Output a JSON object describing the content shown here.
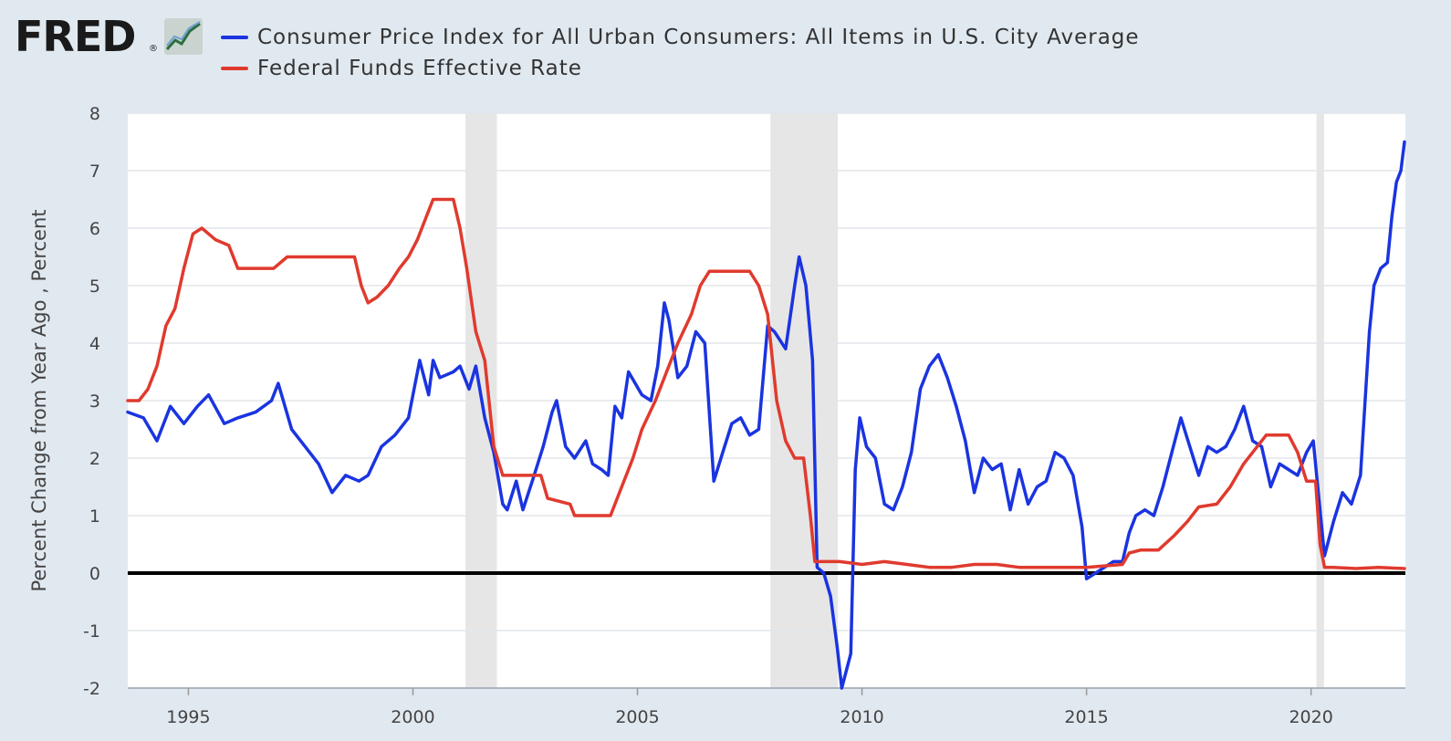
{
  "header": {
    "logo_text": "FRED",
    "logo_reg": "®",
    "logo_icon": "fred-chart-icon"
  },
  "colors": {
    "cpi": "#1a34e0",
    "fedfunds": "#e03a2e",
    "background": "#e1e9f0",
    "plot_bg": "#ffffff",
    "recession": "#e6e6e6",
    "grid": "#e2e6ea",
    "zero_line": "#000000"
  },
  "chart_data": {
    "type": "line",
    "title": "",
    "xlabel": "",
    "ylabel": "Percent Change from Year Ago , Percent",
    "xlim": [
      1993.65,
      2022.1
    ],
    "ylim": [
      -2,
      8
    ],
    "yticks": [
      "8",
      "7",
      "6",
      "5",
      "4",
      "3",
      "2",
      "1",
      "0",
      "-1",
      "-2"
    ],
    "ytick_values": [
      8,
      7,
      6,
      5,
      4,
      3,
      2,
      1,
      0,
      -1,
      -2
    ],
    "xticks": [
      "1995",
      "2000",
      "2005",
      "2010",
      "2015",
      "2020"
    ],
    "xtick_values": [
      1995,
      2000,
      2005,
      2010,
      2015,
      2020
    ],
    "grid": true,
    "legend_position": "top",
    "recessions": [
      [
        2001.17,
        2001.87
      ],
      [
        2007.96,
        2009.46
      ],
      [
        2020.12,
        2020.29
      ]
    ],
    "series": [
      {
        "name": "Consumer Price Index for All Urban Consumers: All Items in U.S. City Average",
        "color": "#1a34e0",
        "points": [
          [
            1993.65,
            2.8
          ],
          [
            1994.0,
            2.7
          ],
          [
            1994.3,
            2.3
          ],
          [
            1994.6,
            2.9
          ],
          [
            1994.9,
            2.6
          ],
          [
            1995.2,
            2.9
          ],
          [
            1995.45,
            3.1
          ],
          [
            1995.8,
            2.6
          ],
          [
            1996.1,
            2.7
          ],
          [
            1996.5,
            2.8
          ],
          [
            1996.85,
            3.0
          ],
          [
            1997.0,
            3.3
          ],
          [
            1997.3,
            2.5
          ],
          [
            1997.6,
            2.2
          ],
          [
            1997.9,
            1.9
          ],
          [
            1998.2,
            1.4
          ],
          [
            1998.5,
            1.7
          ],
          [
            1998.8,
            1.6
          ],
          [
            1999.0,
            1.7
          ],
          [
            1999.3,
            2.2
          ],
          [
            1999.6,
            2.4
          ],
          [
            1999.9,
            2.7
          ],
          [
            2000.15,
            3.7
          ],
          [
            2000.35,
            3.1
          ],
          [
            2000.45,
            3.7
          ],
          [
            2000.6,
            3.4
          ],
          [
            2000.9,
            3.5
          ],
          [
            2001.05,
            3.6
          ],
          [
            2001.25,
            3.2
          ],
          [
            2001.4,
            3.6
          ],
          [
            2001.6,
            2.7
          ],
          [
            2001.8,
            2.1
          ],
          [
            2002.0,
            1.2
          ],
          [
            2002.1,
            1.1
          ],
          [
            2002.3,
            1.6
          ],
          [
            2002.45,
            1.1
          ],
          [
            2002.7,
            1.7
          ],
          [
            2002.9,
            2.2
          ],
          [
            2003.1,
            2.8
          ],
          [
            2003.2,
            3.0
          ],
          [
            2003.4,
            2.2
          ],
          [
            2003.6,
            2.0
          ],
          [
            2003.85,
            2.3
          ],
          [
            2004.0,
            1.9
          ],
          [
            2004.2,
            1.8
          ],
          [
            2004.35,
            1.7
          ],
          [
            2004.5,
            2.9
          ],
          [
            2004.65,
            2.7
          ],
          [
            2004.8,
            3.5
          ],
          [
            2004.95,
            3.3
          ],
          [
            2005.1,
            3.1
          ],
          [
            2005.3,
            3.0
          ],
          [
            2005.45,
            3.6
          ],
          [
            2005.6,
            4.7
          ],
          [
            2005.7,
            4.4
          ],
          [
            2005.9,
            3.4
          ],
          [
            2006.1,
            3.6
          ],
          [
            2006.3,
            4.2
          ],
          [
            2006.5,
            4.0
          ],
          [
            2006.7,
            1.6
          ],
          [
            2006.9,
            2.1
          ],
          [
            2007.1,
            2.6
          ],
          [
            2007.3,
            2.7
          ],
          [
            2007.5,
            2.4
          ],
          [
            2007.7,
            2.5
          ],
          [
            2007.9,
            4.3
          ],
          [
            2008.05,
            4.2
          ],
          [
            2008.3,
            3.9
          ],
          [
            2008.5,
            5.0
          ],
          [
            2008.6,
            5.5
          ],
          [
            2008.75,
            5.0
          ],
          [
            2008.9,
            3.7
          ],
          [
            2009.0,
            0.1
          ],
          [
            2009.15,
            0.0
          ],
          [
            2009.3,
            -0.4
          ],
          [
            2009.45,
            -1.3
          ],
          [
            2009.55,
            -2.0
          ],
          [
            2009.75,
            -1.4
          ],
          [
            2009.85,
            1.8
          ],
          [
            2009.95,
            2.7
          ],
          [
            2010.1,
            2.2
          ],
          [
            2010.3,
            2.0
          ],
          [
            2010.5,
            1.2
          ],
          [
            2010.7,
            1.1
          ],
          [
            2010.9,
            1.5
          ],
          [
            2011.1,
            2.1
          ],
          [
            2011.3,
            3.2
          ],
          [
            2011.5,
            3.6
          ],
          [
            2011.7,
            3.8
          ],
          [
            2011.9,
            3.4
          ],
          [
            2012.1,
            2.9
          ],
          [
            2012.3,
            2.3
          ],
          [
            2012.5,
            1.4
          ],
          [
            2012.7,
            2.0
          ],
          [
            2012.9,
            1.8
          ],
          [
            2013.1,
            1.9
          ],
          [
            2013.3,
            1.1
          ],
          [
            2013.5,
            1.8
          ],
          [
            2013.7,
            1.2
          ],
          [
            2013.9,
            1.5
          ],
          [
            2014.1,
            1.6
          ],
          [
            2014.3,
            2.1
          ],
          [
            2014.5,
            2.0
          ],
          [
            2014.7,
            1.7
          ],
          [
            2014.9,
            0.8
          ],
          [
            2015.0,
            -0.1
          ],
          [
            2015.2,
            0.0
          ],
          [
            2015.4,
            0.1
          ],
          [
            2015.6,
            0.2
          ],
          [
            2015.8,
            0.2
          ],
          [
            2015.95,
            0.7
          ],
          [
            2016.1,
            1.0
          ],
          [
            2016.3,
            1.1
          ],
          [
            2016.5,
            1.0
          ],
          [
            2016.7,
            1.5
          ],
          [
            2016.9,
            2.1
          ],
          [
            2017.1,
            2.7
          ],
          [
            2017.3,
            2.2
          ],
          [
            2017.5,
            1.7
          ],
          [
            2017.7,
            2.2
          ],
          [
            2017.9,
            2.1
          ],
          [
            2018.1,
            2.2
          ],
          [
            2018.3,
            2.5
          ],
          [
            2018.5,
            2.9
          ],
          [
            2018.7,
            2.3
          ],
          [
            2018.9,
            2.2
          ],
          [
            2019.1,
            1.5
          ],
          [
            2019.3,
            1.9
          ],
          [
            2019.5,
            1.8
          ],
          [
            2019.7,
            1.7
          ],
          [
            2019.9,
            2.1
          ],
          [
            2020.05,
            2.3
          ],
          [
            2020.15,
            1.5
          ],
          [
            2020.3,
            0.3
          ],
          [
            2020.5,
            0.9
          ],
          [
            2020.7,
            1.4
          ],
          [
            2020.9,
            1.2
          ],
          [
            2021.1,
            1.7
          ],
          [
            2021.3,
            4.2
          ],
          [
            2021.4,
            5.0
          ],
          [
            2021.55,
            5.3
          ],
          [
            2021.7,
            5.4
          ],
          [
            2021.8,
            6.2
          ],
          [
            2021.9,
            6.8
          ],
          [
            2022.0,
            7.0
          ],
          [
            2022.08,
            7.5
          ]
        ]
      },
      {
        "name": "Federal Funds Effective Rate",
        "color": "#e03a2e",
        "points": [
          [
            1993.65,
            3.0
          ],
          [
            1993.9,
            3.0
          ],
          [
            1994.1,
            3.2
          ],
          [
            1994.3,
            3.6
          ],
          [
            1994.5,
            4.3
          ],
          [
            1994.7,
            4.6
          ],
          [
            1994.9,
            5.3
          ],
          [
            1995.1,
            5.9
          ],
          [
            1995.3,
            6.0
          ],
          [
            1995.6,
            5.8
          ],
          [
            1995.9,
            5.7
          ],
          [
            1996.1,
            5.3
          ],
          [
            1996.3,
            5.3
          ],
          [
            1996.6,
            5.3
          ],
          [
            1996.9,
            5.3
          ],
          [
            1997.2,
            5.5
          ],
          [
            1997.5,
            5.5
          ],
          [
            1997.8,
            5.5
          ],
          [
            1998.1,
            5.5
          ],
          [
            1998.4,
            5.5
          ],
          [
            1998.7,
            5.5
          ],
          [
            1998.85,
            5.0
          ],
          [
            1999.0,
            4.7
          ],
          [
            1999.2,
            4.8
          ],
          [
            1999.45,
            5.0
          ],
          [
            1999.7,
            5.3
          ],
          [
            1999.9,
            5.5
          ],
          [
            2000.1,
            5.8
          ],
          [
            2000.3,
            6.2
          ],
          [
            2000.45,
            6.5
          ],
          [
            2000.7,
            6.5
          ],
          [
            2000.9,
            6.5
          ],
          [
            2001.05,
            6.0
          ],
          [
            2001.2,
            5.3
          ],
          [
            2001.4,
            4.2
          ],
          [
            2001.6,
            3.7
          ],
          [
            2001.8,
            2.2
          ],
          [
            2002.0,
            1.7
          ],
          [
            2002.5,
            1.7
          ],
          [
            2002.85,
            1.7
          ],
          [
            2003.0,
            1.3
          ],
          [
            2003.5,
            1.2
          ],
          [
            2003.6,
            1.0
          ],
          [
            2004.0,
            1.0
          ],
          [
            2004.4,
            1.0
          ],
          [
            2004.6,
            1.4
          ],
          [
            2004.9,
            2.0
          ],
          [
            2005.1,
            2.5
          ],
          [
            2005.4,
            3.0
          ],
          [
            2005.6,
            3.4
          ],
          [
            2005.9,
            4.0
          ],
          [
            2006.2,
            4.5
          ],
          [
            2006.4,
            5.0
          ],
          [
            2006.6,
            5.25
          ],
          [
            2006.9,
            5.25
          ],
          [
            2007.2,
            5.25
          ],
          [
            2007.5,
            5.25
          ],
          [
            2007.7,
            5.0
          ],
          [
            2007.9,
            4.5
          ],
          [
            2008.1,
            3.0
          ],
          [
            2008.3,
            2.3
          ],
          [
            2008.5,
            2.0
          ],
          [
            2008.7,
            2.0
          ],
          [
            2008.85,
            1.0
          ],
          [
            2008.95,
            0.2
          ],
          [
            2009.2,
            0.2
          ],
          [
            2009.5,
            0.2
          ],
          [
            2010.0,
            0.15
          ],
          [
            2010.5,
            0.2
          ],
          [
            2011.0,
            0.15
          ],
          [
            2011.5,
            0.1
          ],
          [
            2012.0,
            0.1
          ],
          [
            2012.5,
            0.15
          ],
          [
            2013.0,
            0.15
          ],
          [
            2013.5,
            0.1
          ],
          [
            2014.0,
            0.1
          ],
          [
            2014.5,
            0.1
          ],
          [
            2015.0,
            0.1
          ],
          [
            2015.8,
            0.15
          ],
          [
            2015.95,
            0.35
          ],
          [
            2016.2,
            0.4
          ],
          [
            2016.6,
            0.4
          ],
          [
            2016.95,
            0.65
          ],
          [
            2017.25,
            0.9
          ],
          [
            2017.5,
            1.15
          ],
          [
            2017.9,
            1.2
          ],
          [
            2018.2,
            1.5
          ],
          [
            2018.5,
            1.9
          ],
          [
            2018.8,
            2.2
          ],
          [
            2019.0,
            2.4
          ],
          [
            2019.5,
            2.4
          ],
          [
            2019.7,
            2.1
          ],
          [
            2019.9,
            1.6
          ],
          [
            2020.1,
            1.6
          ],
          [
            2020.2,
            0.5
          ],
          [
            2020.3,
            0.1
          ],
          [
            2020.5,
            0.1
          ],
          [
            2021.0,
            0.08
          ],
          [
            2021.5,
            0.1
          ],
          [
            2022.08,
            0.08
          ]
        ]
      }
    ]
  }
}
